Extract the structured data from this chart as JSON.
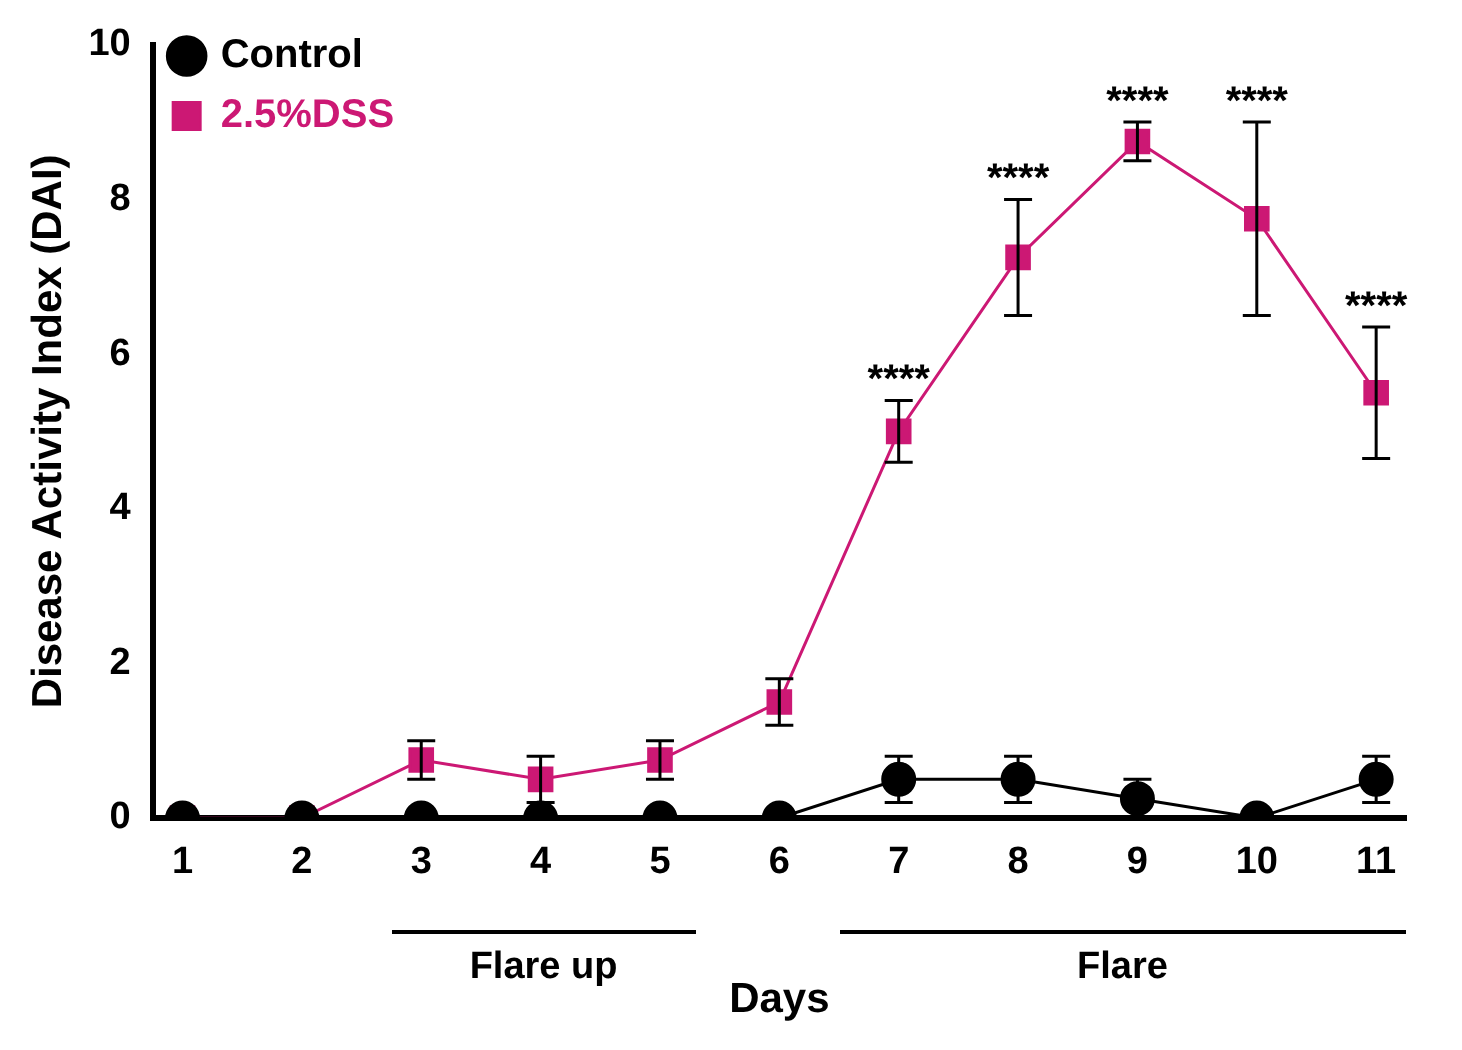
{
  "chart_data": {
    "type": "line",
    "xlabel": "Days",
    "ylabel": "Disease Activity Index (DAI)",
    "x": [
      1,
      2,
      3,
      4,
      5,
      6,
      7,
      8,
      9,
      10,
      11
    ],
    "xlim": [
      0.75,
      11.25
    ],
    "xticks": [
      1,
      2,
      3,
      4,
      5,
      6,
      7,
      8,
      9,
      10,
      11
    ],
    "ylim": [
      0,
      10
    ],
    "yticks": [
      0,
      2,
      4,
      6,
      8,
      10
    ],
    "series": [
      {
        "name": "Control",
        "color": "#000000",
        "marker": "circle",
        "values": [
          0,
          0,
          0,
          0,
          0,
          0,
          0.5,
          0.5,
          0.25,
          0,
          0.5
        ],
        "errors": [
          null,
          null,
          null,
          null,
          null,
          null,
          0.3,
          0.3,
          0.25,
          null,
          0.3
        ]
      },
      {
        "name": "2.5%DSS",
        "color": "#cc1874",
        "marker": "square",
        "values": [
          0,
          0,
          0.75,
          0.5,
          0.75,
          1.5,
          5,
          7.25,
          8.75,
          7.75,
          5.5
        ],
        "errors": [
          null,
          null,
          0.25,
          0.3,
          0.25,
          0.3,
          [
            4.6,
            5.4
          ],
          [
            6.5,
            8
          ],
          [
            8.5,
            9
          ],
          [
            6.5,
            9
          ],
          [
            4.65,
            6.35
          ]
        ]
      }
    ],
    "annotations": [
      {
        "text": "****",
        "x": 7,
        "y": 5.4
      },
      {
        "text": "****",
        "x": 8,
        "y": 8
      },
      {
        "text": "****",
        "x": 9,
        "y": 9
      },
      {
        "text": "****",
        "x": 10,
        "y": 9
      },
      {
        "text": "****",
        "x": 11,
        "y": 6.35
      },
      "Flare up",
      "Flare"
    ],
    "grid": false,
    "legend": "top left"
  }
}
